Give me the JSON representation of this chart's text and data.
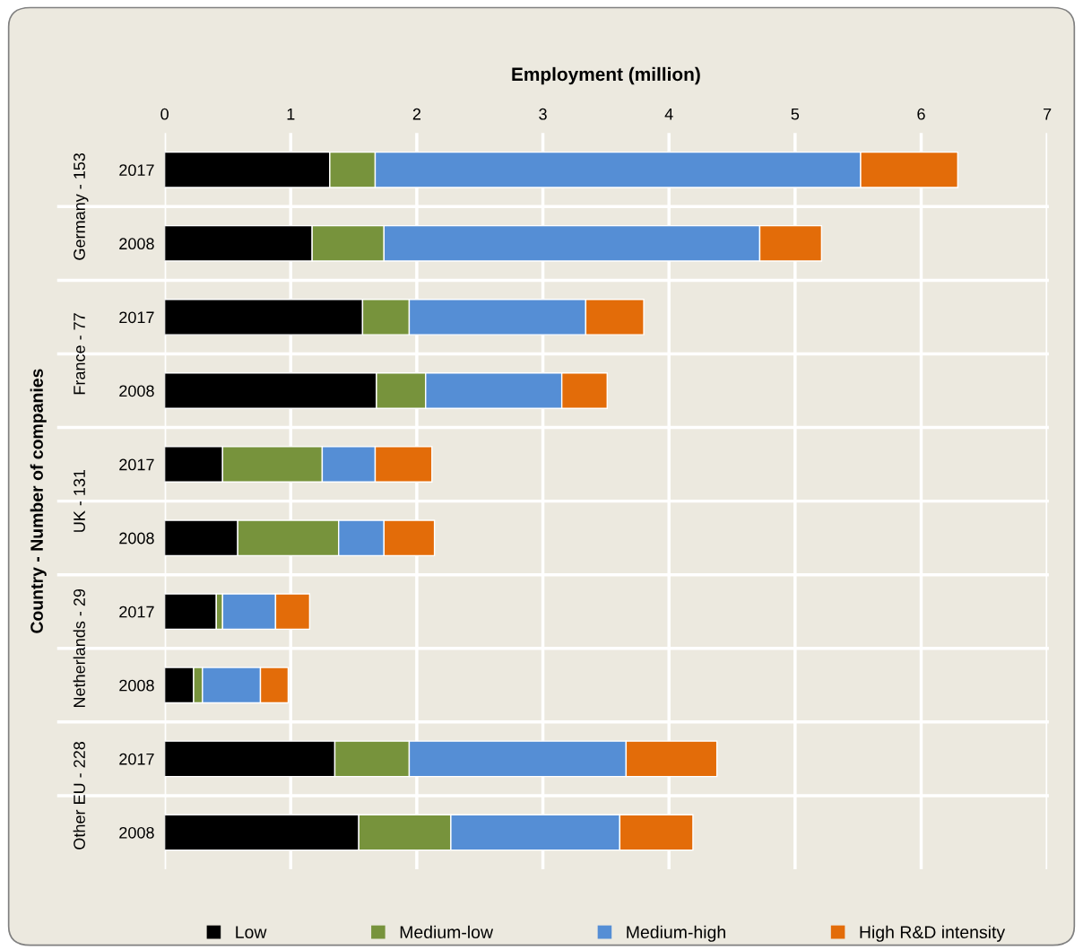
{
  "chart_data": {
    "type": "bar",
    "orientation": "horizontal",
    "stacked": true,
    "title": "Employment (million)",
    "ylabel": "Country - Number of companies",
    "categories": [
      "2017",
      "2008",
      "2017",
      "2008",
      "2017",
      "2008",
      "2017",
      "2008",
      "2017",
      "2008"
    ],
    "annotations": [
      "Germany - 153",
      "France - 77",
      "UK - 131",
      "Netherlands - 29",
      "Other EU - 228"
    ],
    "series": [
      {
        "name": "Low",
        "color": "#000000",
        "values": [
          1.31,
          1.17,
          1.57,
          1.68,
          0.46,
          0.58,
          0.41,
          0.23,
          1.35,
          1.54
        ]
      },
      {
        "name": "Medium-low",
        "color": "#77933c",
        "values": [
          0.36,
          0.57,
          0.37,
          0.39,
          0.79,
          0.8,
          0.05,
          0.07,
          0.59,
          0.73
        ]
      },
      {
        "name": "Medium-high",
        "color": "#558ed5",
        "values": [
          3.85,
          2.98,
          1.4,
          1.08,
          0.42,
          0.36,
          0.42,
          0.46,
          1.72,
          1.34
        ]
      },
      {
        "name": "High R&D intensity",
        "color": "#e36c09",
        "values": [
          0.77,
          0.49,
          0.46,
          0.36,
          0.45,
          0.4,
          0.27,
          0.22,
          0.72,
          0.58
        ]
      }
    ],
    "xlim": [
      0,
      7
    ],
    "xticks": [
      0,
      1,
      2,
      3,
      4,
      5,
      6,
      7
    ],
    "grid": "x",
    "legend": "bottom"
  }
}
